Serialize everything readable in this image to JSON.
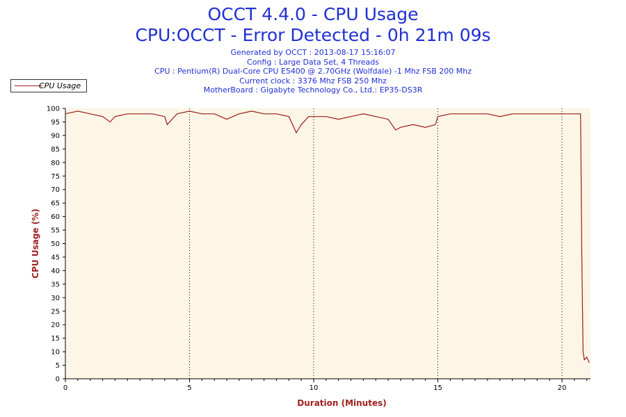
{
  "chart_data": {
    "type": "line",
    "title": "OCCT 4.4.0 - CPU Usage",
    "subtitle": "CPU:OCCT - Error Detected - 0h 21m 09s",
    "info_lines": [
      "Generated by OCCT : 2013-08-17 15:16:07",
      "Config : Large Data Set, 4 Threads",
      "CPU : Pentium(R) Dual-Core CPU E5400 @ 2.70GHz (Wolfdale) -1 Mhz FSB 200 Mhz",
      "Current clock : 3376 Mhz FSB 250 Mhz",
      "MotherBoard : Gigabyte Technology Co., Ltd.: EP35-DS3R"
    ],
    "xlabel": "Duration (Minutes)",
    "ylabel": "CPU Usage (%)",
    "xlim": [
      0,
      21.15
    ],
    "ylim": [
      0,
      100
    ],
    "x_ticks": [
      0,
      5,
      10,
      15,
      20
    ],
    "y_ticks": [
      0,
      5,
      10,
      15,
      20,
      25,
      30,
      35,
      40,
      45,
      50,
      55,
      60,
      65,
      70,
      75,
      80,
      85,
      90,
      95,
      100
    ],
    "legend": {
      "position": "top-left",
      "entries": [
        "CPU Usage"
      ]
    },
    "grid": {
      "x_dotted_lines": true,
      "y": false
    },
    "series": [
      {
        "name": "CPU Usage",
        "color": "#9b1b1b",
        "x": [
          0,
          0.5,
          1.0,
          1.5,
          1.8,
          2.0,
          2.5,
          3.0,
          3.5,
          4.0,
          4.1,
          4.5,
          5.0,
          5.5,
          6.0,
          6.5,
          7.0,
          7.5,
          8.0,
          8.5,
          9.0,
          9.3,
          9.5,
          9.8,
          10.0,
          10.5,
          11.0,
          11.5,
          12.0,
          12.5,
          13.0,
          13.3,
          13.5,
          14.0,
          14.5,
          14.9,
          15.0,
          15.5,
          16.0,
          16.5,
          17.0,
          17.5,
          18.0,
          18.5,
          19.0,
          19.5,
          20.0,
          20.5,
          20.75,
          20.8,
          20.85,
          20.9,
          21.0,
          21.1
        ],
        "y": [
          98,
          99,
          98,
          97,
          95,
          97,
          98,
          98,
          98,
          97,
          94,
          98,
          99,
          98,
          98,
          96,
          98,
          99,
          98,
          98,
          97,
          91,
          94,
          97,
          97,
          97,
          96,
          97,
          98,
          97,
          96,
          92,
          93,
          94,
          93,
          94,
          97,
          98,
          98,
          98,
          98,
          97,
          98,
          98,
          98,
          98,
          98,
          98,
          98,
          45,
          10,
          7,
          8,
          6
        ]
      }
    ]
  },
  "colors": {
    "plot_bg": "#fdf6e6",
    "series": "#9b1b1b",
    "text": "#1f2fd2",
    "axis_label": "#a02020"
  }
}
